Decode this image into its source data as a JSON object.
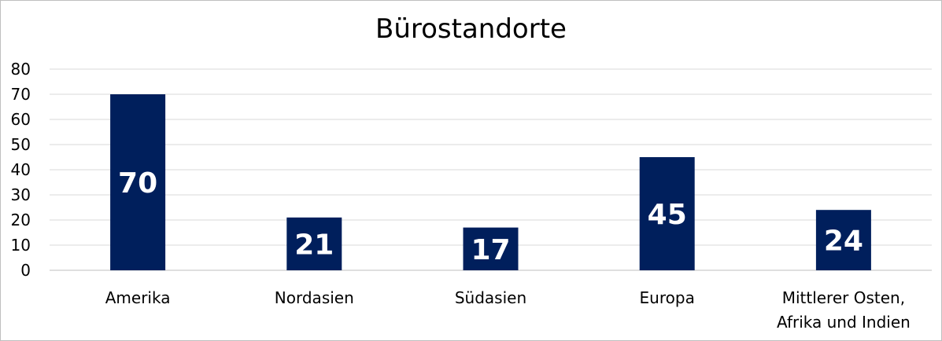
{
  "chart_data": {
    "type": "bar",
    "title": "Bürostandorte",
    "categories": [
      [
        "Amerika"
      ],
      [
        "Nordasien"
      ],
      [
        "Südasien"
      ],
      [
        "Europa"
      ],
      [
        "Mittlerer Osten,",
        "Afrika und Indien"
      ]
    ],
    "values": [
      70,
      21,
      17,
      45,
      24
    ],
    "ylim": [
      0,
      80
    ],
    "yticks": [
      0,
      10,
      20,
      30,
      40,
      50,
      60,
      70,
      80
    ],
    "grid": true,
    "legend": "none",
    "bar_color": "#001f5c",
    "grid_color": "#d9d9d9"
  }
}
